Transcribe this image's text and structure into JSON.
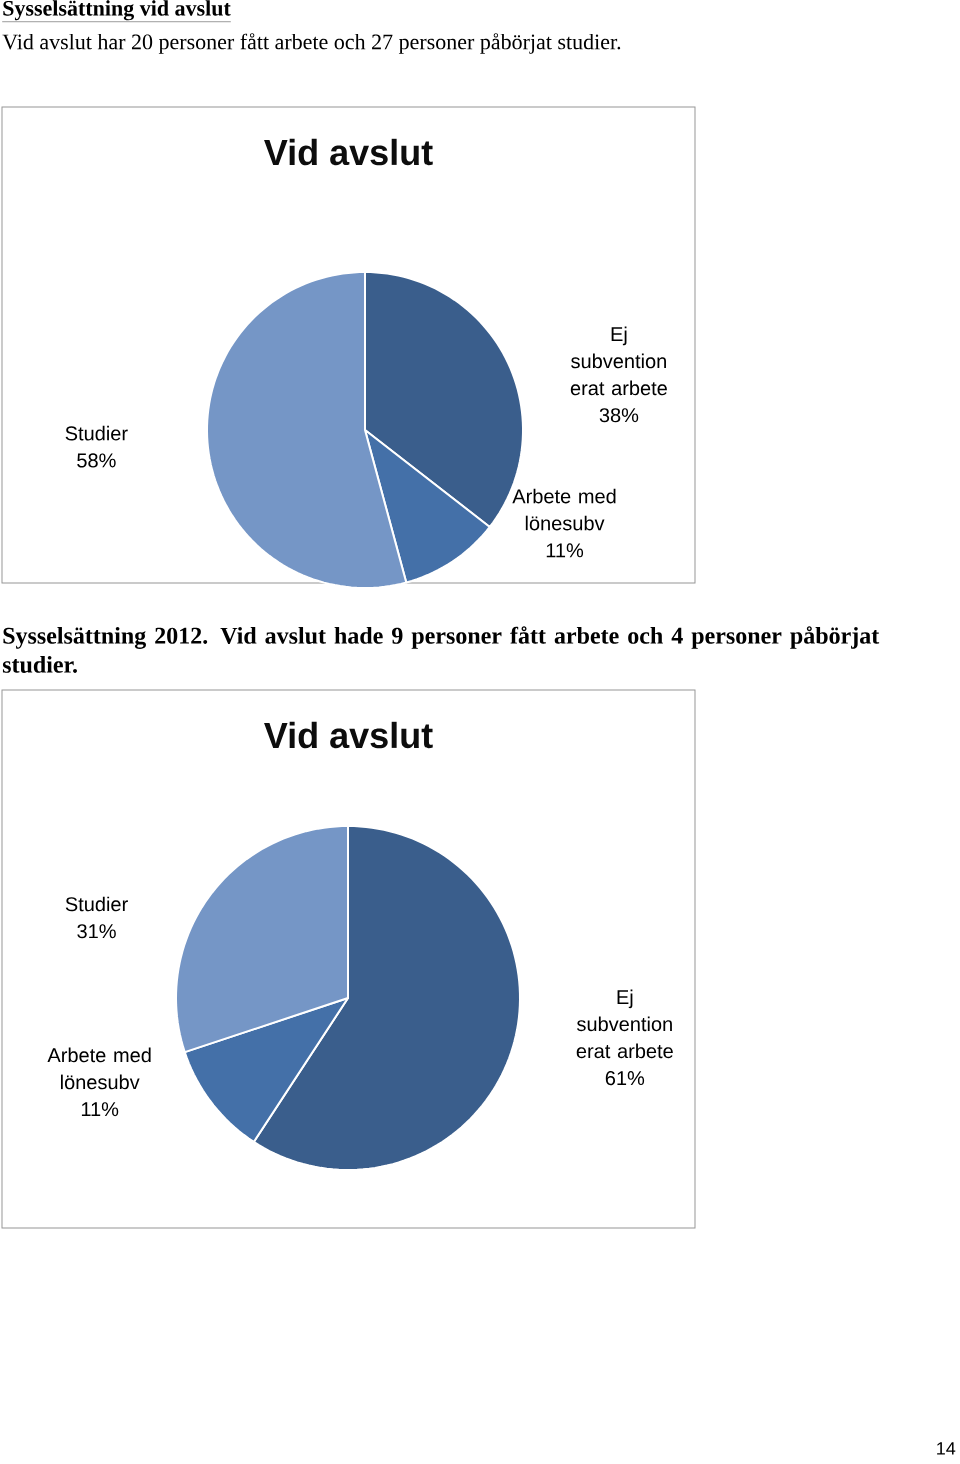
{
  "chart_data": [
    {
      "type": "pie",
      "title": "Vid avslut",
      "categories": [
        "Ej subvention erat arbete",
        "Arbete med lönesubv",
        "Studier"
      ],
      "values": [
        38,
        11,
        58
      ],
      "value_labels": [
        "38%",
        "11%",
        "58%"
      ],
      "colors": [
        "#3a5e8c",
        "#4470a8",
        "#7596c6"
      ],
      "annotations": [
        "Sysselsättning vid avslut",
        "Vid avslut har 20 personer fått arbete och 27 personer påbörjat studier."
      ]
    },
    {
      "type": "pie",
      "title": "Vid avslut",
      "categories": [
        "Ej subvention erat arbete",
        "Arbete med lönesubv",
        "Studier"
      ],
      "values": [
        61,
        11,
        31
      ],
      "value_labels": [
        "61%",
        "11%",
        "31%"
      ],
      "colors": [
        "#3a5e8c",
        "#4470a8",
        "#7596c6"
      ],
      "annotations": [
        "Sysselsättning 2012. Vid avslut hade 9 personer fått arbete och 4 personer påbörjat studier.",
        "14"
      ]
    }
  ]
}
